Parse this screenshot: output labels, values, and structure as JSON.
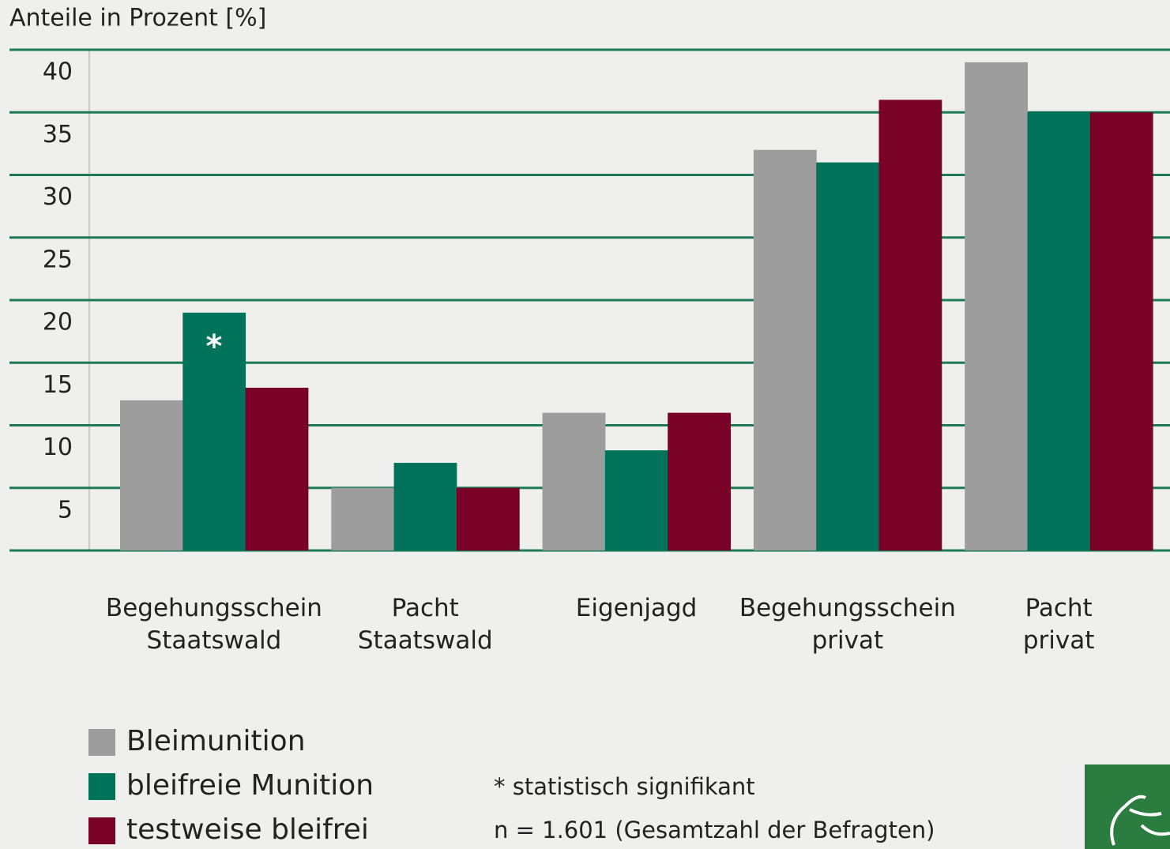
{
  "chart_data": {
    "type": "bar",
    "title": "Anteile in Prozent [%]",
    "categories": [
      [
        "Begehungsschein",
        "Staatswald"
      ],
      [
        "Pacht",
        "Staatswald"
      ],
      [
        "Eigenjagd"
      ],
      [
        "Begehungsschein",
        "privat"
      ],
      [
        "Pacht",
        "privat"
      ]
    ],
    "series": [
      {
        "name": "Bleimunition",
        "color": "#9d9d9d",
        "values": [
          12,
          5,
          11,
          32,
          39
        ]
      },
      {
        "name": "bleifreie Munition",
        "color": "#00735a",
        "values": [
          19,
          7,
          8,
          31,
          35
        ]
      },
      {
        "name": "testweise bleifrei",
        "color": "#790026",
        "values": [
          13,
          5,
          11,
          36,
          35
        ]
      }
    ],
    "annotation": "*",
    "footnotes": [
      "* statistisch signifikant",
      "n = 1.601 (Gesamtzahl der Befragten)"
    ],
    "ylim": [
      0,
      40
    ],
    "yticks": [
      5,
      10,
      15,
      20,
      25,
      30,
      35,
      40
    ],
    "grid": true,
    "grid_color": "#1a7a55",
    "legend": "bottom-left"
  }
}
